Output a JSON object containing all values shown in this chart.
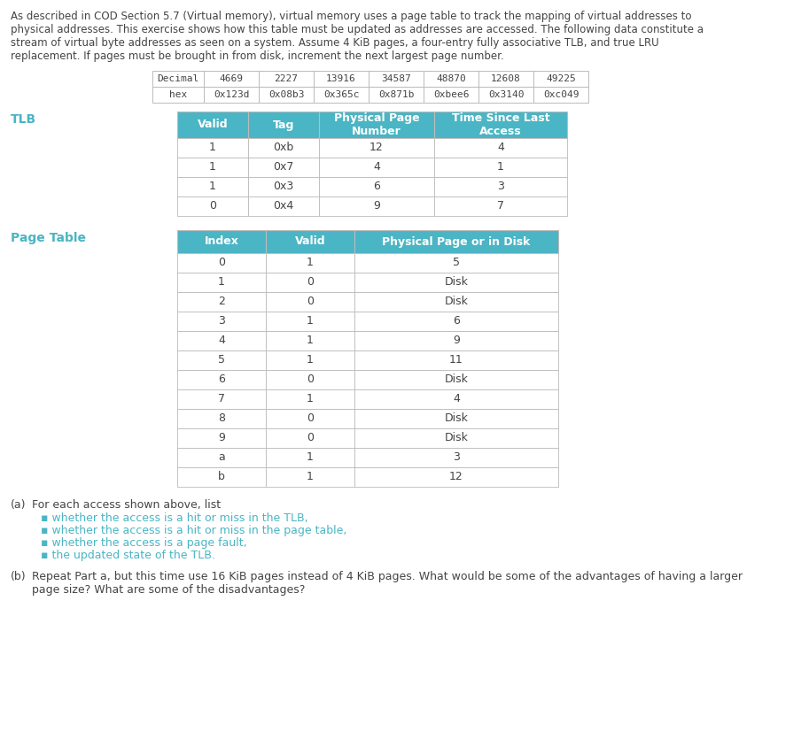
{
  "intro_text_lines": [
    "As described in COD Section 5.7 (Virtual memory), virtual memory uses a page table to track the mapping of virtual addresses to",
    "physical addresses. This exercise shows how this table must be updated as addresses are accessed. The following data constitute a",
    "stream of virtual byte addresses as seen on a system. Assume 4 KiB pages, a four-entry fully associative TLB, and true LRU",
    "replacement. If pages must be brought in from disk, increment the next largest page number."
  ],
  "addr_table_header": [
    "Decimal",
    "4669",
    "2227",
    "13916",
    "34587",
    "48870",
    "12608",
    "49225"
  ],
  "addr_table_hex": [
    "hex",
    "0x123d",
    "0x08b3",
    "0x365c",
    "0x871b",
    "0xbee6",
    "0x3140",
    "0xc049"
  ],
  "tlb_label": "TLB",
  "tlb_headers": [
    "Valid",
    "Tag",
    "Physical Page\nNumber",
    "Time Since Last\nAccess"
  ],
  "tlb_rows": [
    [
      "1",
      "0xb",
      "12",
      "4"
    ],
    [
      "1",
      "0x7",
      "4",
      "1"
    ],
    [
      "1",
      "0x3",
      "6",
      "3"
    ],
    [
      "0",
      "0x4",
      "9",
      "7"
    ]
  ],
  "pt_label": "Page Table",
  "pt_headers": [
    "Index",
    "Valid",
    "Physical Page or in Disk"
  ],
  "pt_rows": [
    [
      "0",
      "1",
      "5"
    ],
    [
      "1",
      "0",
      "Disk"
    ],
    [
      "2",
      "0",
      "Disk"
    ],
    [
      "3",
      "1",
      "6"
    ],
    [
      "4",
      "1",
      "9"
    ],
    [
      "5",
      "1",
      "11"
    ],
    [
      "6",
      "0",
      "Disk"
    ],
    [
      "7",
      "1",
      "4"
    ],
    [
      "8",
      "0",
      "Disk"
    ],
    [
      "9",
      "0",
      "Disk"
    ],
    [
      "a",
      "1",
      "3"
    ],
    [
      "b",
      "1",
      "12"
    ]
  ],
  "part_a_label": "(a)",
  "part_a_text": "For each access shown above, list",
  "part_a_bullets": [
    "whether the access is a hit or miss in the TLB,",
    "whether the access is a hit or miss in the page table,",
    "whether the access is a page fault,",
    "the updated state of the TLB."
  ],
  "part_b_label": "(b)",
  "part_b_text_lines": [
    "Repeat Part a, but this time use 16 KiB pages instead of 4 KiB pages. What would be some of the advantages of having a larger",
    "page size? What are some of the disadvantages?"
  ],
  "header_bg": "#4ab5c4",
  "header_text_color": "#ffffff",
  "body_text_color": "#444444",
  "intro_text_color": "#444444",
  "label_text_color": "#4ab5c4",
  "bullet_text_color": "#4ab5c4",
  "part_label_color": "#444444",
  "table_border_color": "#bbbbbb",
  "background_color": "#ffffff"
}
